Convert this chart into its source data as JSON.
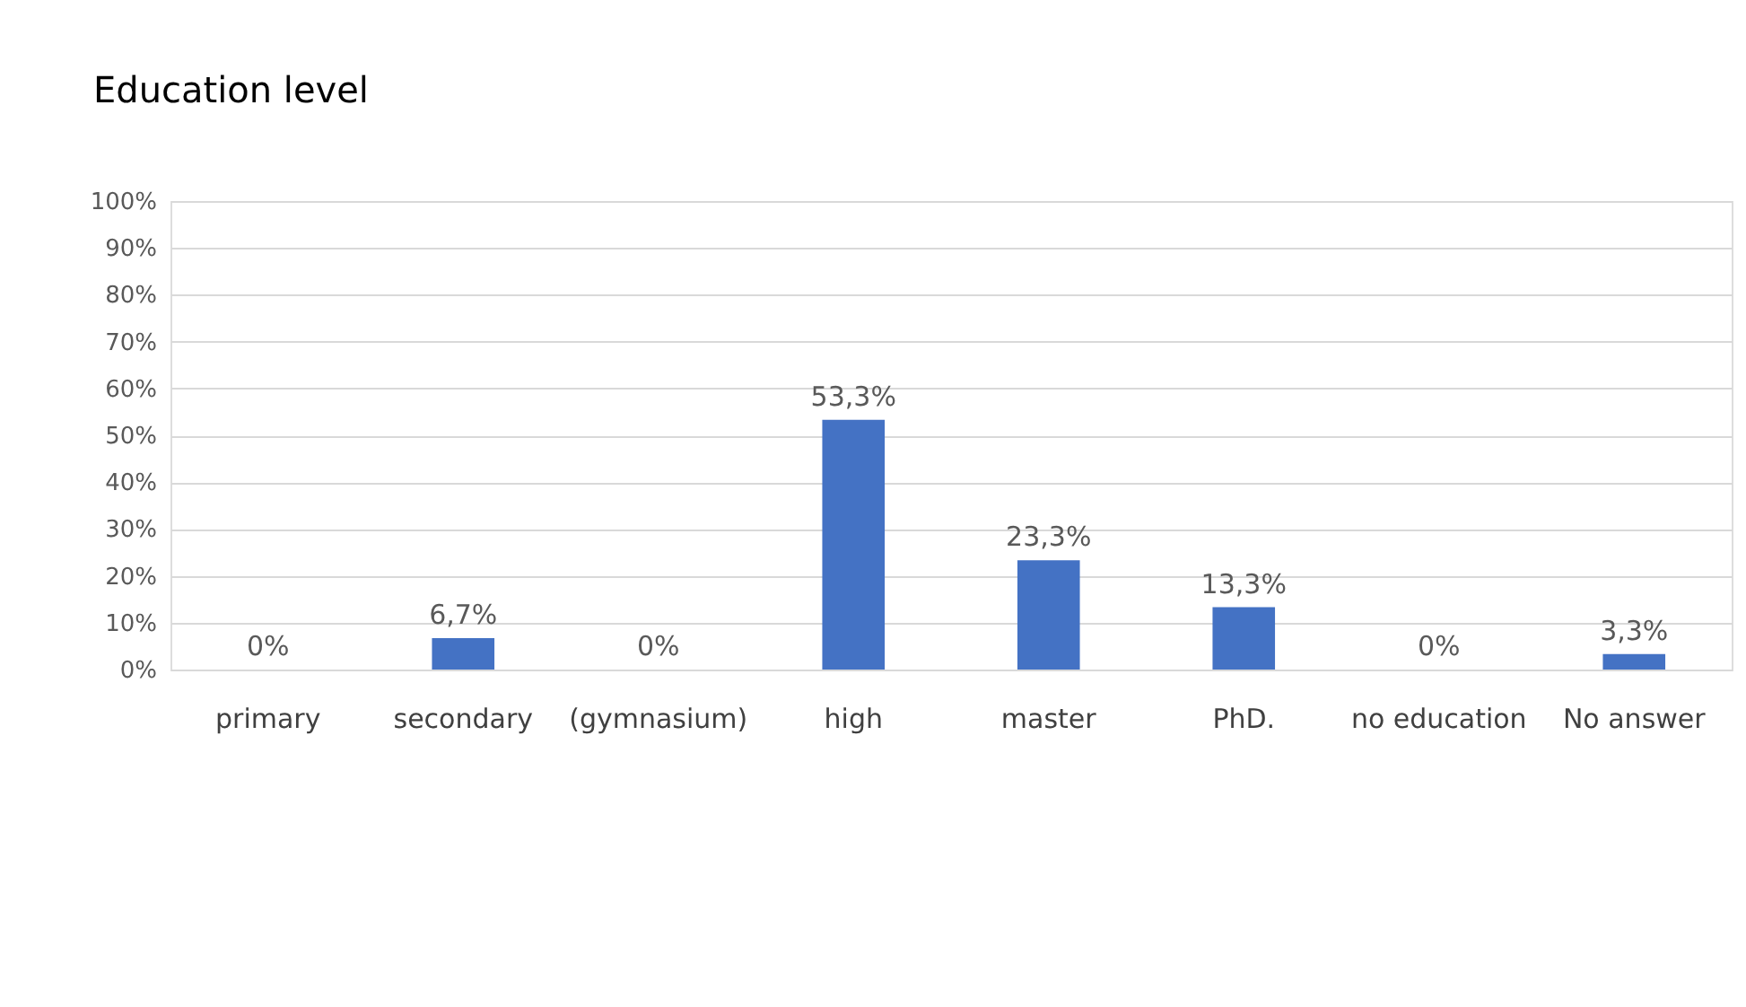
{
  "chart_data": {
    "type": "bar",
    "title": "Education level",
    "categories": [
      "primary",
      "secondary",
      "(gymnasium)",
      "high",
      "master",
      "PhD.",
      "no education",
      "No answer"
    ],
    "values": [
      0,
      6.7,
      0,
      53.3,
      23.3,
      13.3,
      0,
      3.3
    ],
    "value_labels": [
      "0%",
      "6,7%",
      "0%",
      "53,3%",
      "23,3%",
      "13,3%",
      "0%",
      "3,3%"
    ],
    "color": "#4472c4",
    "ylim": [
      0,
      100
    ],
    "yticks": [
      {
        "value": 0,
        "label": "0%"
      },
      {
        "value": 10,
        "label": "10%"
      },
      {
        "value": 20,
        "label": "20%"
      },
      {
        "value": 30,
        "label": "30%"
      },
      {
        "value": 40,
        "label": "40%"
      },
      {
        "value": 50,
        "label": "50%"
      },
      {
        "value": 60,
        "label": "60%"
      },
      {
        "value": 70,
        "label": "70%"
      },
      {
        "value": 80,
        "label": "80%"
      },
      {
        "value": 90,
        "label": "90%"
      },
      {
        "value": 100,
        "label": "100%"
      }
    ],
    "grid": "y"
  }
}
